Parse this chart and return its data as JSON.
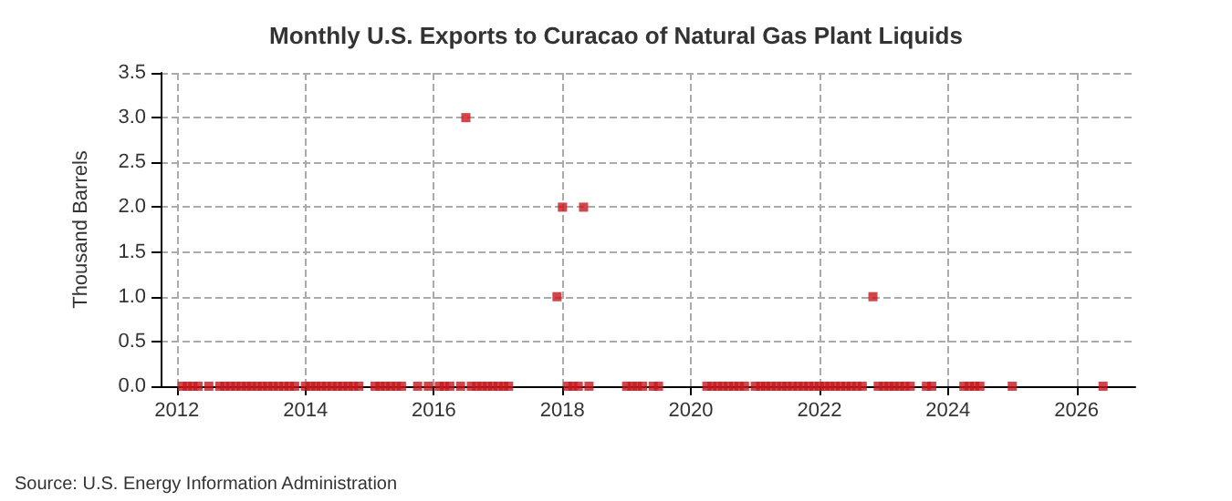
{
  "chart_data": {
    "type": "scatter",
    "title": "Monthly U.S. Exports to Curacao of Natural Gas Plant Liquids",
    "ylabel": "Thousand Barrels",
    "annotations": [
      "Source: U.S. Energy Information Administration"
    ],
    "x": [
      "2012-02",
      "2012-03",
      "2012-04",
      "2012-05",
      "2012-07",
      "2012-09",
      "2012-10",
      "2012-11",
      "2012-12",
      "2013-01",
      "2013-02",
      "2013-03",
      "2013-04",
      "2013-05",
      "2013-06",
      "2013-07",
      "2013-08",
      "2013-09",
      "2013-10",
      "2013-11",
      "2014-01",
      "2014-02",
      "2014-03",
      "2014-04",
      "2014-05",
      "2014-06",
      "2014-07",
      "2014-08",
      "2014-09",
      "2014-10",
      "2014-11",
      "2015-02",
      "2015-03",
      "2015-04",
      "2015-05",
      "2015-06",
      "2015-07",
      "2015-10",
      "2015-12",
      "2016-02",
      "2016-03",
      "2016-04",
      "2016-06",
      "2016-07",
      "2016-08",
      "2016-09",
      "2016-10",
      "2016-11",
      "2016-12",
      "2017-01",
      "2017-02",
      "2017-03",
      "2017-12",
      "2018-01",
      "2018-02",
      "2018-03",
      "2018-04",
      "2018-05",
      "2018-06",
      "2019-01",
      "2019-02",
      "2019-03",
      "2019-04",
      "2019-06",
      "2019-07",
      "2020-04",
      "2020-05",
      "2020-06",
      "2020-07",
      "2020-08",
      "2020-09",
      "2020-10",
      "2020-11",
      "2021-01",
      "2021-02",
      "2021-03",
      "2021-04",
      "2021-05",
      "2021-06",
      "2021-07",
      "2021-08",
      "2021-09",
      "2021-10",
      "2021-11",
      "2021-12",
      "2022-01",
      "2022-02",
      "2022-03",
      "2022-04",
      "2022-05",
      "2022-06",
      "2022-07",
      "2022-08",
      "2022-09",
      "2022-11",
      "2022-12",
      "2023-01",
      "2023-02",
      "2023-03",
      "2023-04",
      "2023-05",
      "2023-06",
      "2023-09",
      "2023-10",
      "2024-04",
      "2024-05",
      "2024-06",
      "2024-07",
      "2025-01",
      "2026-06"
    ],
    "values": [
      0,
      0,
      0,
      0,
      0,
      0,
      0,
      0,
      0,
      0,
      0,
      0,
      0,
      0,
      0,
      0,
      0,
      0,
      0,
      0,
      0,
      0,
      0,
      0,
      0,
      0,
      0,
      0,
      0,
      0,
      0,
      0,
      0,
      0,
      0,
      0,
      0,
      0,
      0,
      0,
      0,
      0,
      0,
      3,
      0,
      0,
      0,
      0,
      0,
      0,
      0,
      0,
      1,
      2,
      0,
      0,
      0,
      2,
      0,
      0,
      0,
      0,
      0,
      0,
      0,
      0,
      0,
      0,
      0,
      0,
      0,
      0,
      0,
      0,
      0,
      0,
      0,
      0,
      0,
      0,
      0,
      0,
      0,
      0,
      0,
      0,
      0,
      0,
      0,
      0,
      0,
      0,
      0,
      0,
      1,
      0,
      0,
      0,
      0,
      0,
      0,
      0,
      0,
      0,
      0,
      0,
      0,
      0,
      0,
      0
    ],
    "color": "#c8161d",
    "marker": "square",
    "grid": true,
    "xlim": [
      "2011-10",
      "2026-12"
    ],
    "xticks": [
      "2012",
      "2014",
      "2016",
      "2018",
      "2020",
      "2022",
      "2024",
      "2026"
    ],
    "ylim": [
      0,
      3.5
    ],
    "yticks": [
      {
        "value": 0,
        "label": "0.0"
      },
      {
        "value": 0.5,
        "label": "0.5"
      },
      {
        "value": 1,
        "label": "1.0"
      },
      {
        "value": 1.5,
        "label": "1.5"
      },
      {
        "value": 2,
        "label": "2.0"
      },
      {
        "value": 2.5,
        "label": "2.5"
      },
      {
        "value": 3,
        "label": "3.0"
      },
      {
        "value": 3.5,
        "label": "3.5"
      }
    ]
  }
}
